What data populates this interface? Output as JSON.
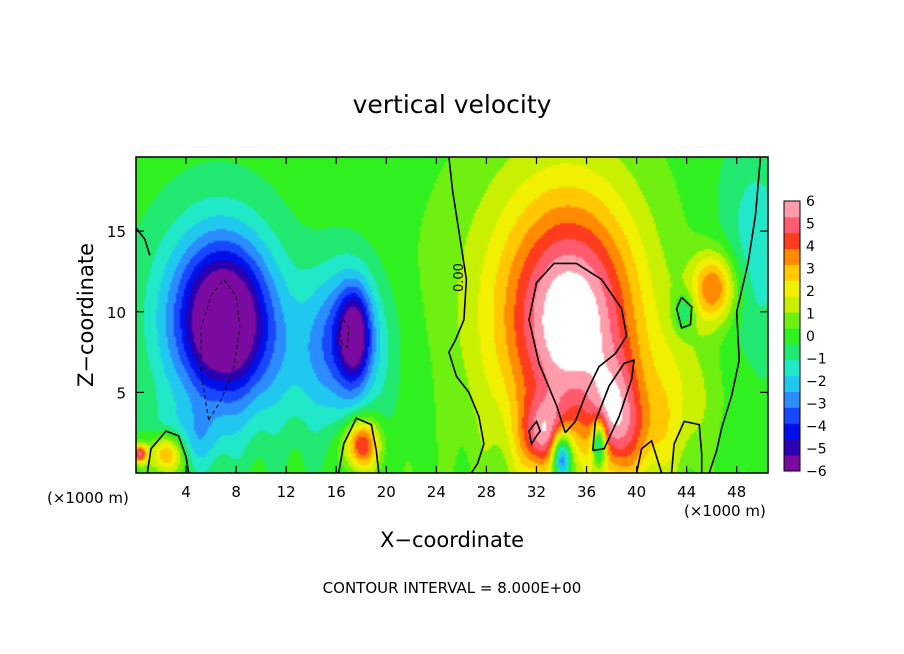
{
  "chart_data": {
    "type": "heatmap",
    "title": "vertical velocity",
    "xlabel": "X−coordinate",
    "ylabel": "Z−coordinate",
    "x_unit": "(×1000 m)",
    "x_unit_right": "(×1000 m)",
    "footer": "CONTOUR INTERVAL = 8.000E+00",
    "contour_label": "0.00",
    "xlim": [
      0,
      50.5
    ],
    "ylim": [
      0,
      19.6
    ],
    "x_ticks": [
      4,
      8,
      12,
      16,
      20,
      24,
      28,
      32,
      36,
      40,
      44,
      48
    ],
    "y_ticks": [
      5,
      10,
      15
    ],
    "colorbar": {
      "range": [
        -6,
        6
      ],
      "ticks": [
        6,
        5,
        4,
        3,
        2,
        1,
        0,
        -1,
        -2,
        -3,
        -4,
        -5,
        -6
      ],
      "tick_labels": [
        "6",
        "5",
        "4",
        "3",
        "2",
        "1",
        "0",
        "−1",
        "−2",
        "−3",
        "−4",
        "−5",
        "−6"
      ],
      "colors": [
        "#7a0aa0",
        "#2a00b0",
        "#0010e8",
        "#1848ff",
        "#2a8cff",
        "#20c8f0",
        "#20e8c8",
        "#20e870",
        "#30f020",
        "#70f010",
        "#c8f000",
        "#f0f000",
        "#ffc800",
        "#ff8c00",
        "#ff3c1e",
        "#ff5a6e",
        "#ff9cac"
      ],
      "saturated_color": "#ffffff"
    },
    "features": [
      {
        "x": 6.5,
        "z": 9.6,
        "rx": 5.0,
        "rz": 6.2,
        "w": -4.0
      },
      {
        "x": 7.2,
        "z": 9.4,
        "rx": 3.2,
        "rz": 4.3,
        "w": -3.8
      },
      {
        "x": 16.8,
        "z": 8.6,
        "rx": 2.8,
        "rz": 4.5,
        "w": -3.0
      },
      {
        "x": 17.5,
        "z": 8.6,
        "rx": 1.2,
        "rz": 2.7,
        "w": -3.5
      },
      {
        "x": 15.0,
        "z": 6.5,
        "rx": 6.0,
        "rz": 5.0,
        "w": -1.2
      },
      {
        "x": 4.0,
        "z": 2.0,
        "rx": 3.0,
        "rz": 2.0,
        "w": -1.5
      },
      {
        "x": 34.5,
        "z": 10.0,
        "rx": 6.5,
        "rz": 9.0,
        "w": 4.5
      },
      {
        "x": 35.0,
        "z": 9.0,
        "rx": 4.2,
        "rz": 5.8,
        "w": 2.5
      },
      {
        "x": 32.5,
        "z": 2.3,
        "rx": 1.8,
        "rz": 2.3,
        "w": 3.5
      },
      {
        "x": 38.2,
        "z": 3.5,
        "rx": 1.8,
        "rz": 3.5,
        "w": 3.0
      },
      {
        "x": 34.0,
        "z": 1.0,
        "rx": 0.8,
        "rz": 1.6,
        "w": -6.0
      },
      {
        "x": 37.0,
        "z": 1.8,
        "rx": 0.6,
        "rz": 1.5,
        "w": -5.0
      },
      {
        "x": 46.2,
        "z": 11.5,
        "rx": 1.8,
        "rz": 2.2,
        "w": 4.0
      },
      {
        "x": 43.8,
        "z": 10.0,
        "rx": 0.8,
        "rz": 1.2,
        "w": -2.0
      },
      {
        "x": 18.0,
        "z": 1.8,
        "rx": 1.4,
        "rz": 1.6,
        "w": 5.0
      },
      {
        "x": 2.5,
        "z": 1.2,
        "rx": 1.3,
        "rz": 1.3,
        "w": 4.5
      },
      {
        "x": 0.3,
        "z": 1.2,
        "rx": 0.6,
        "rz": 0.6,
        "w": 5.0
      },
      {
        "x": 26.0,
        "z": 10.0,
        "rx": 8.0,
        "rz": 12.0,
        "w": 0.35
      },
      {
        "x": 49.5,
        "z": 14.0,
        "rx": 3.0,
        "rz": 7.0,
        "w": -1.5
      },
      {
        "x": 43.0,
        "z": 5.0,
        "rx": 4.0,
        "rz": 4.0,
        "w": 1.2
      },
      {
        "x": 40.5,
        "z": 2.0,
        "rx": 3.0,
        "rz": 3.0,
        "w": 1.5
      }
    ],
    "contours": [
      {
        "style": "solid",
        "points": [
          [
            0,
            15.2
          ],
          [
            0.7,
            14.5
          ],
          [
            1.1,
            13.5
          ]
        ]
      },
      {
        "style": "solid",
        "points": [
          [
            0.9,
            0
          ],
          [
            1.2,
            1.5
          ],
          [
            2.4,
            2.6
          ],
          [
            3.4,
            2.3
          ],
          [
            4.0,
            1.0
          ],
          [
            4.2,
            0
          ]
        ]
      },
      {
        "style": "solid",
        "points": [
          [
            16.2,
            0
          ],
          [
            16.6,
            1.8
          ],
          [
            17.6,
            3.4
          ],
          [
            18.8,
            3.0
          ],
          [
            19.2,
            1.4
          ],
          [
            19.4,
            0
          ]
        ]
      },
      {
        "style": "solid",
        "points": [
          [
            25.0,
            19.6
          ],
          [
            25.3,
            17.5
          ],
          [
            25.8,
            15.0
          ],
          [
            26.4,
            12.0
          ],
          [
            26.2,
            9.5
          ],
          [
            25.5,
            8.2
          ],
          [
            25.0,
            7.5
          ],
          [
            25.6,
            6.0
          ],
          [
            26.6,
            5.0
          ],
          [
            27.4,
            3.5
          ],
          [
            27.8,
            1.8
          ],
          [
            27.3,
            0.6
          ],
          [
            26.8,
            0
          ]
        ]
      },
      {
        "style": "solid",
        "points": [
          [
            36.5,
            1.4
          ],
          [
            36.7,
            3.2
          ],
          [
            37.8,
            5.4
          ],
          [
            39.0,
            6.8
          ],
          [
            39.8,
            7.0
          ],
          [
            39.6,
            5.8
          ],
          [
            38.6,
            3.5
          ],
          [
            37.4,
            1.5
          ],
          [
            36.5,
            1.4
          ]
        ]
      },
      {
        "style": "solid",
        "points": [
          [
            34.3,
            2.5
          ],
          [
            33.6,
            4.2
          ],
          [
            32.2,
            6.8
          ],
          [
            31.4,
            9.5
          ],
          [
            32.0,
            11.8
          ],
          [
            33.4,
            13.0
          ],
          [
            35.2,
            13.0
          ],
          [
            37.2,
            12.0
          ],
          [
            38.8,
            10.2
          ],
          [
            39.2,
            8.5
          ],
          [
            38.3,
            7.4
          ],
          [
            37.0,
            6.6
          ],
          [
            36.0,
            5.0
          ],
          [
            35.1,
            3.2
          ],
          [
            34.3,
            2.5
          ]
        ]
      },
      {
        "style": "solid",
        "points": [
          [
            32.0,
            2.3
          ],
          [
            31.6,
            1.8
          ],
          [
            31.4,
            2.6
          ],
          [
            32.0,
            3.2
          ],
          [
            32.3,
            2.6
          ],
          [
            32.0,
            2.3
          ]
        ]
      },
      {
        "style": "solid",
        "points": [
          [
            43.6,
            10.9
          ],
          [
            43.2,
            10.2
          ],
          [
            43.6,
            9.0
          ],
          [
            44.3,
            9.2
          ],
          [
            44.4,
            10.3
          ],
          [
            43.6,
            10.9
          ]
        ]
      },
      {
        "style": "solid",
        "points": [
          [
            40.0,
            0
          ],
          [
            40.4,
            1.5
          ],
          [
            41.2,
            2.0
          ],
          [
            41.6,
            1.0
          ],
          [
            42.0,
            0
          ]
        ]
      },
      {
        "style": "solid",
        "points": [
          [
            42.8,
            0
          ],
          [
            43.0,
            1.8
          ],
          [
            43.8,
            3.2
          ],
          [
            45.0,
            3.0
          ],
          [
            45.2,
            1.2
          ],
          [
            45.2,
            0
          ]
        ]
      },
      {
        "style": "solid",
        "points": [
          [
            45.8,
            0
          ],
          [
            46.4,
            1.4
          ],
          [
            46.8,
            2.8
          ],
          [
            47.6,
            4.8
          ],
          [
            48.2,
            7.0
          ],
          [
            48.0,
            10.0
          ],
          [
            48.9,
            13.0
          ],
          [
            49.5,
            16.0
          ],
          [
            49.9,
            19.6
          ]
        ]
      },
      {
        "style": "dashed",
        "points": [
          [
            5.8,
            3.3
          ],
          [
            5.2,
            6.2
          ],
          [
            5.2,
            9.0
          ],
          [
            6.0,
            11.0
          ],
          [
            7.0,
            12.0
          ],
          [
            8.0,
            11.0
          ],
          [
            8.3,
            9.0
          ],
          [
            7.8,
            6.5
          ],
          [
            6.8,
            4.5
          ],
          [
            5.8,
            3.3
          ]
        ]
      },
      {
        "style": "dashed",
        "points": [
          [
            16.5,
            8.0
          ],
          [
            16.2,
            8.8
          ],
          [
            16.5,
            9.6
          ],
          [
            17.0,
            9.0
          ],
          [
            16.9,
            7.8
          ],
          [
            16.5,
            8.0
          ]
        ]
      }
    ]
  }
}
